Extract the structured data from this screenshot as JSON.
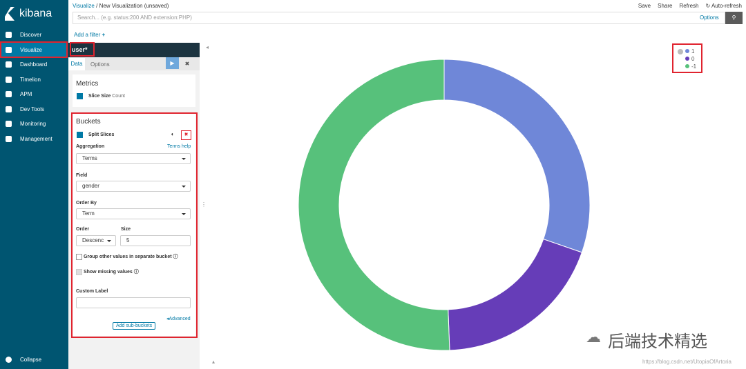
{
  "sidebar": {
    "brand": "kibana",
    "nav": [
      "Discover",
      "Visualize",
      "Dashboard",
      "Timelion",
      "APM",
      "Dev Tools",
      "Monitoring",
      "Management"
    ],
    "collapse": "Collapse"
  },
  "header": {
    "breadcrumb": [
      "Visualize",
      "New Visualization (unsaved)"
    ],
    "separator": "/",
    "actions": [
      "Save",
      "Share",
      "Refresh",
      "Auto-refresh"
    ],
    "search_placeholder": "Search... (e.g. status:200 AND extension:PHP)",
    "options": "Options",
    "add_filter": "Add a filter"
  },
  "editor": {
    "index": "user*",
    "tabs": [
      "Data",
      "Options"
    ],
    "metrics": {
      "title": "Metrics",
      "label": "Slice Size",
      "value": "Count"
    },
    "buckets": {
      "title": "Buckets",
      "agg_type": "Split Slices",
      "aggregation_label": "Aggregation",
      "help": "Terms help",
      "aggregation": "Terms",
      "field_label": "Field",
      "field": "gender",
      "order_by_label": "Order By",
      "order_by": "Term",
      "order_label": "Order",
      "order": "Descenc",
      "size_label": "Size",
      "size": 5,
      "group_other": "Group other values in separate bucket",
      "show_missing": "Show missing values",
      "custom_label": "Custom Label",
      "advanced": "Advanced",
      "add_sub": "Add sub-buckets"
    }
  },
  "chart_data": {
    "type": "pie",
    "donut": true,
    "categories": [
      "1",
      "0",
      "-1"
    ],
    "values": [
      30.3,
      19.1,
      50.6
    ],
    "colors": [
      "#6f87d8",
      "#663db8",
      "#57c17b"
    ]
  },
  "watermark": {
    "text": "后端技术精选",
    "url": "https://blog.csdn.net/UtopiaOfArtoria"
  }
}
